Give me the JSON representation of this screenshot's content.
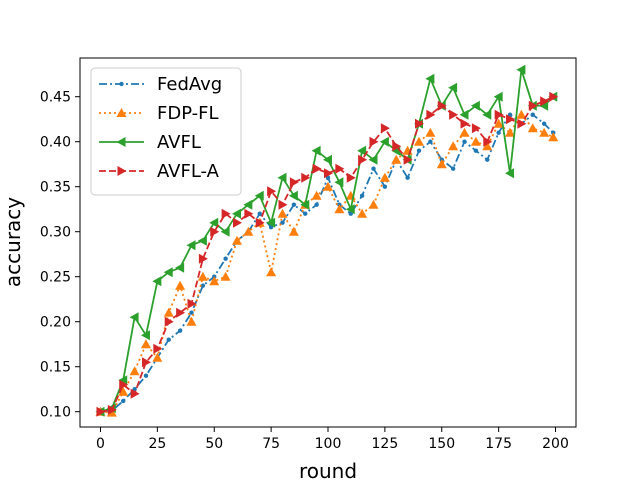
{
  "chart_data": {
    "type": "line",
    "xlabel": "round",
    "ylabel": "accuracy",
    "xlim": [
      -9,
      209
    ],
    "ylim": [
      0.083,
      0.493
    ],
    "xticks": [
      0,
      25,
      50,
      75,
      100,
      125,
      150,
      175,
      200
    ],
    "yticks": [
      0.1,
      0.15,
      0.2,
      0.25,
      0.3,
      0.35,
      0.4,
      0.45
    ],
    "grid": false,
    "legend_position": "top-left",
    "series": [
      {
        "name": "FedAvg",
        "color": "#1f77b4",
        "line_style": "dashdot",
        "marker": "point",
        "x": [
          0,
          5,
          10,
          15,
          20,
          25,
          30,
          35,
          40,
          45,
          50,
          55,
          60,
          65,
          70,
          75,
          80,
          85,
          90,
          95,
          100,
          105,
          110,
          115,
          120,
          125,
          130,
          135,
          140,
          145,
          150,
          155,
          160,
          165,
          170,
          175,
          180,
          185,
          190,
          195,
          199
        ],
        "y": [
          0.1,
          0.101,
          0.112,
          0.125,
          0.14,
          0.16,
          0.18,
          0.19,
          0.21,
          0.24,
          0.25,
          0.27,
          0.29,
          0.3,
          0.32,
          0.305,
          0.31,
          0.33,
          0.32,
          0.33,
          0.36,
          0.33,
          0.32,
          0.34,
          0.37,
          0.35,
          0.38,
          0.36,
          0.39,
          0.4,
          0.38,
          0.37,
          0.4,
          0.39,
          0.38,
          0.41,
          0.43,
          0.42,
          0.43,
          0.42,
          0.41
        ]
      },
      {
        "name": "FDP-FL",
        "color": "#ff7f0e",
        "line_style": "dotted",
        "marker": "triangle-up",
        "x": [
          0,
          5,
          10,
          15,
          20,
          25,
          30,
          35,
          40,
          45,
          50,
          55,
          60,
          65,
          70,
          75,
          80,
          85,
          90,
          95,
          100,
          105,
          110,
          115,
          120,
          125,
          130,
          135,
          140,
          145,
          150,
          155,
          160,
          165,
          170,
          175,
          180,
          185,
          190,
          195,
          199
        ],
        "y": [
          0.1,
          0.099,
          0.122,
          0.145,
          0.175,
          0.16,
          0.21,
          0.24,
          0.2,
          0.25,
          0.245,
          0.25,
          0.29,
          0.3,
          0.31,
          0.255,
          0.32,
          0.3,
          0.33,
          0.34,
          0.35,
          0.325,
          0.34,
          0.32,
          0.33,
          0.36,
          0.38,
          0.39,
          0.4,
          0.41,
          0.375,
          0.395,
          0.41,
          0.4,
          0.395,
          0.42,
          0.41,
          0.43,
          0.415,
          0.41,
          0.405
        ]
      },
      {
        "name": "AVFL",
        "color": "#2ca02c",
        "line_style": "solid",
        "marker": "triangle-left",
        "x": [
          0,
          5,
          10,
          15,
          20,
          25,
          30,
          35,
          40,
          45,
          50,
          55,
          60,
          65,
          70,
          75,
          80,
          85,
          90,
          95,
          100,
          105,
          110,
          115,
          120,
          125,
          130,
          135,
          140,
          145,
          150,
          155,
          160,
          165,
          170,
          175,
          180,
          185,
          190,
          195,
          199
        ],
        "y": [
          0.1,
          0.104,
          0.135,
          0.205,
          0.185,
          0.245,
          0.255,
          0.26,
          0.285,
          0.29,
          0.31,
          0.3,
          0.32,
          0.33,
          0.34,
          0.31,
          0.36,
          0.34,
          0.33,
          0.39,
          0.38,
          0.355,
          0.325,
          0.39,
          0.38,
          0.4,
          0.39,
          0.38,
          0.42,
          0.47,
          0.44,
          0.46,
          0.43,
          0.44,
          0.43,
          0.45,
          0.365,
          0.48,
          0.44,
          0.44,
          0.45
        ]
      },
      {
        "name": "AVFL-A",
        "color": "#d62728",
        "line_style": "dashed",
        "marker": "triangle-right",
        "x": [
          0,
          5,
          10,
          15,
          20,
          25,
          30,
          35,
          40,
          45,
          50,
          55,
          60,
          65,
          70,
          75,
          80,
          85,
          90,
          95,
          100,
          105,
          110,
          115,
          120,
          125,
          130,
          135,
          140,
          145,
          150,
          155,
          160,
          165,
          170,
          175,
          180,
          185,
          190,
          195,
          199
        ],
        "y": [
          0.1,
          0.102,
          0.13,
          0.12,
          0.155,
          0.17,
          0.2,
          0.21,
          0.22,
          0.27,
          0.3,
          0.32,
          0.31,
          0.32,
          0.31,
          0.345,
          0.33,
          0.355,
          0.36,
          0.37,
          0.365,
          0.37,
          0.36,
          0.38,
          0.4,
          0.415,
          0.395,
          0.38,
          0.42,
          0.43,
          0.44,
          0.43,
          0.42,
          0.415,
          0.4,
          0.43,
          0.425,
          0.42,
          0.44,
          0.445,
          0.45
        ]
      }
    ]
  }
}
